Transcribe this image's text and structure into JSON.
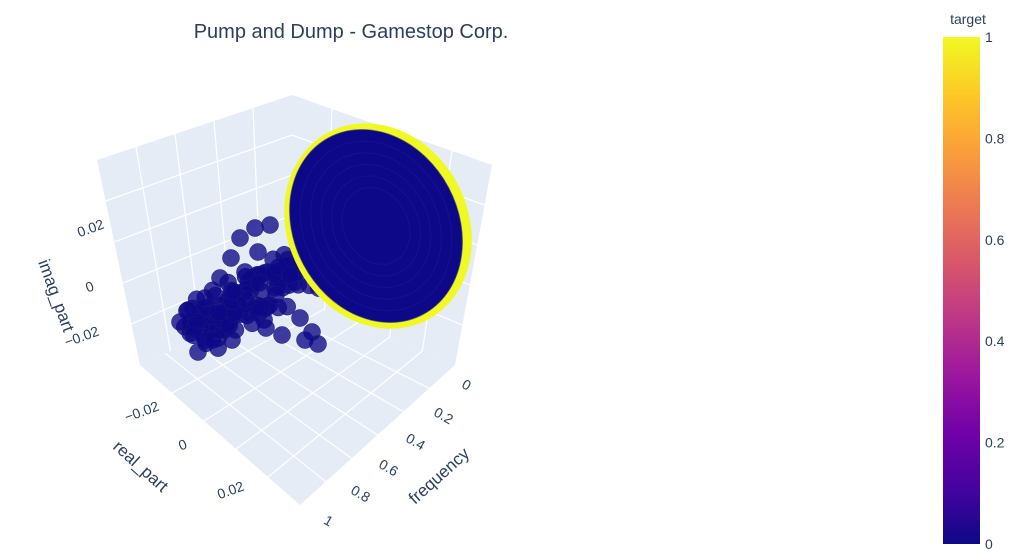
{
  "chart_data": {
    "type": "scatter",
    "subtype": "scatter3d",
    "title": "Pump and Dump - Gamestop Corp.",
    "axes": {
      "x": {
        "label": "real_part",
        "ticks": [
          "−0.02",
          "0",
          "0.02"
        ]
      },
      "y": {
        "label": "frequency",
        "ticks": [
          "0",
          "0.2",
          "0.4",
          "0.6",
          "0.8",
          "1"
        ]
      },
      "z": {
        "label": "imag_part",
        "ticks": [
          "−0.02",
          "0",
          "0.02"
        ]
      }
    },
    "color_scale": {
      "title": "target",
      "ticks": [
        "0",
        "0.2",
        "0.4",
        "0.6",
        "0.8",
        "1"
      ],
      "range": [
        0,
        1
      ],
      "colors": [
        "#0d0887",
        "#46039f",
        "#7201a8",
        "#9c179e",
        "#bd3786",
        "#d8576b",
        "#ed7953",
        "#fb9f3a",
        "#fdca26",
        "#f0f921"
      ]
    },
    "series": [
      {
        "name": "",
        "target": 0,
        "color": "#0d0887",
        "description_points": "dense cluster along frequency axis forming funnel into large disc"
      },
      {
        "name": "",
        "target": 1,
        "color": "#f0f921",
        "description_points": "ring at outer edge of disc (frequency near 0)"
      }
    ],
    "grid": true,
    "background": "#e5ecf6"
  }
}
